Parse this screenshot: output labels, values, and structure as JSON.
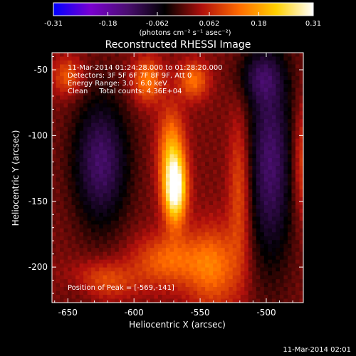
{
  "chart_data": {
    "type": "heatmap",
    "title": "Reconstructed RHESSI Image",
    "xlabel": "Heliocentric X (arcsec)",
    "ylabel": "Heliocentric Y (arcsec)",
    "xlim": [
      -662,
      -472
    ],
    "ylim": [
      -227,
      -37
    ],
    "xticks": [
      -650,
      -600,
      -550,
      -500
    ],
    "xtick_labels": [
      "-650",
      "-600",
      "-550",
      "-500"
    ],
    "yticks": [
      -50,
      -100,
      -150,
      -200
    ],
    "ytick_labels": [
      "-50",
      "-100",
      "-150",
      "-200"
    ],
    "colorbar": {
      "min": -0.31,
      "max": 0.31,
      "ticks": [
        -0.31,
        -0.18,
        -0.062,
        0.062,
        0.18,
        0.31
      ],
      "tick_labels": [
        "-0.31",
        "-0.18",
        "-0.062",
        "0.062",
        "0.18",
        "0.31"
      ],
      "units_label": "(photons cm⁻² s⁻¹ asec⁻²)",
      "stops": [
        "#0000ff",
        "#7a00d0",
        "#4a0e70",
        "#000000",
        "#b0100c",
        "#ff6a00",
        "#ffd000",
        "#ffffff"
      ]
    },
    "annotations": [
      "11-Mar-2014 01:24:28.000 to 01:28:20.000",
      "Detectors: 3F 5F 6F 7F 8F 9F, Att 0",
      "Energy Range: 3.0 - 6.0 keV",
      "Clean     Total counts: 4.36E+04"
    ],
    "peak_label": "Position of Peak = [-569,-141]",
    "peak": {
      "x": -569,
      "y": -141,
      "value": 0.31
    },
    "components": [
      {
        "kind": "source",
        "x": -569,
        "y": -141,
        "sx": 6,
        "sy": 18,
        "value": 0.31
      },
      {
        "kind": "source",
        "x": -572,
        "y": -110,
        "sx": 7,
        "sy": 22,
        "value": 0.14
      },
      {
        "kind": "source",
        "x": -590,
        "y": -58,
        "sx": 8,
        "sy": 12,
        "value": 0.13
      },
      {
        "kind": "source",
        "x": -555,
        "y": -58,
        "sx": 8,
        "sy": 10,
        "value": 0.12
      },
      {
        "kind": "source",
        "x": -540,
        "y": -200,
        "sx": 14,
        "sy": 22,
        "value": 0.12
      },
      {
        "kind": "source",
        "x": -650,
        "y": -55,
        "sx": 8,
        "sy": 10,
        "value": 0.1
      },
      {
        "kind": "source",
        "x": -625,
        "y": -210,
        "sx": 18,
        "sy": 10,
        "value": 0.1
      },
      {
        "kind": "source",
        "x": -575,
        "y": -195,
        "sx": 18,
        "sy": 14,
        "value": 0.11
      },
      {
        "kind": "source",
        "x": -520,
        "y": -140,
        "sx": 6,
        "sy": 40,
        "value": 0.1
      },
      {
        "kind": "source",
        "x": -472,
        "y": -120,
        "sx": 6,
        "sy": 30,
        "value": 0.09
      },
      {
        "kind": "sidelobe",
        "x": -625,
        "y": -120,
        "sx": 15,
        "sy": 35,
        "value": -0.14
      },
      {
        "kind": "sidelobe",
        "x": -497,
        "y": -120,
        "sx": 13,
        "sy": 55,
        "value": -0.14
      },
      {
        "kind": "sidelobe",
        "x": -505,
        "y": -55,
        "sx": 12,
        "sy": 14,
        "value": -0.08
      },
      {
        "kind": "sidelobe",
        "x": -640,
        "y": -215,
        "sx": 12,
        "sy": 10,
        "value": -0.04
      }
    ]
  },
  "footer_timestamp": "11-Mar-2014 02:01"
}
